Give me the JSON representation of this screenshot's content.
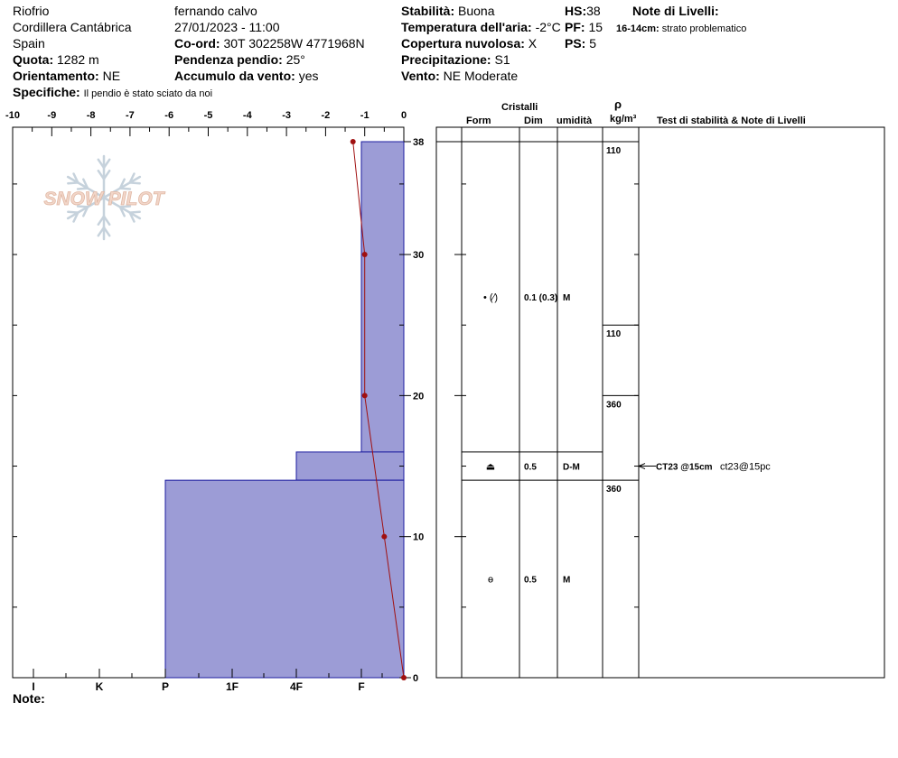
{
  "header": {
    "location": "Riofrio",
    "range": "Cordillera Cantábrica",
    "country": "Spain",
    "quota_label": "Quota:",
    "quota_value": "1282 m",
    "orient_label": "Orientamento:",
    "orient_value": "NE",
    "spec_label": "Specifiche:",
    "spec_value": "Il pendio è stato sciato da noi",
    "observer": "fernando calvo",
    "datetime": "27/01/2023 - 11:00",
    "coord_label": "Co-ord:",
    "coord_value": "30T 302258W 4771968N",
    "slope_label": "Pendenza pendio:",
    "slope_value": "25°",
    "wind_acc_label": "Accumulo da vento:",
    "wind_acc_value": "yes",
    "stab_label": "Stabilità:",
    "stab_value": "Buona",
    "temp_label": "Temperatura dell'aria:",
    "temp_value": "-2°C",
    "cloud_label": "Copertura nuvolosa:",
    "cloud_value": "X",
    "precip_label": "Precipitazione:",
    "precip_value": "S1",
    "wind_label": "Vento:",
    "wind_value": "NE Moderate",
    "hs_label": "HS:",
    "hs_value": "38",
    "pf_label": "PF:",
    "pf_value": "15",
    "ps_label": "PS:",
    "ps_value": "5",
    "notes_title": "Note di Livelli:",
    "note_depth": "16-14cm:",
    "note_text": "strato problematico",
    "footer_note": "Note:"
  },
  "logo": {
    "text": "SNOW PILOT"
  },
  "columns": {
    "crystals": "Cristalli",
    "form": "Form",
    "dim": "Dim",
    "humidity": "umidità",
    "rho": "ρ",
    "density_unit": "kg/m³",
    "tests": "Test di stabilità & Note di Livelli"
  },
  "chart_data": {
    "type": "area",
    "y_label": "",
    "height_ticks": [
      0,
      10,
      20,
      30,
      38
    ],
    "ylim": [
      0,
      38
    ],
    "temp_ticks": [
      "-10",
      "-9",
      "-8",
      "-7",
      "-6",
      "-5",
      "-4",
      "-3",
      "-2",
      "-1",
      "0"
    ],
    "temp_xlim": [
      -10,
      0
    ],
    "hardness_ticks": [
      "I",
      "K",
      "P",
      "1F",
      "4F",
      "F"
    ],
    "hardness_profile": [
      {
        "top": 38,
        "bottom": 16,
        "hardness": "F"
      },
      {
        "top": 16,
        "bottom": 14,
        "hardness": "4F"
      },
      {
        "top": 14,
        "bottom": 0,
        "hardness": "P"
      }
    ],
    "temperature_profile": [
      {
        "height": 38,
        "temp": -1.3
      },
      {
        "height": 30,
        "temp": -1.0
      },
      {
        "height": 20,
        "temp": -1.0
      },
      {
        "height": 10,
        "temp": -0.5
      },
      {
        "height": 0,
        "temp": 0
      }
    ],
    "layers": [
      {
        "top": 38,
        "bottom": 16,
        "form": "• (⁄)",
        "dim": "0.1 (0.3)",
        "hum": "M"
      },
      {
        "top": 16,
        "bottom": 14,
        "form": "⏏",
        "dim": "0.5",
        "hum": "D-M"
      },
      {
        "top": 14,
        "bottom": 0,
        "form": "ɵ",
        "dim": "0.5",
        "hum": "M"
      }
    ],
    "density": [
      {
        "top": 38,
        "bottom": 25,
        "value": "110"
      },
      {
        "top": 25,
        "bottom": 20,
        "value": "110"
      },
      {
        "top": 20,
        "bottom": 14,
        "value": "360"
      },
      {
        "top": 14,
        "bottom": 0,
        "value": "360"
      }
    ],
    "tests": [
      {
        "height": 15,
        "label": "CT23 @15cm",
        "comment": "ct23@15pc"
      }
    ],
    "colors": {
      "hardness_fill": "#9c9cd6",
      "hardness_stroke": "#1c1ca0",
      "temp_line": "#a01010"
    }
  }
}
